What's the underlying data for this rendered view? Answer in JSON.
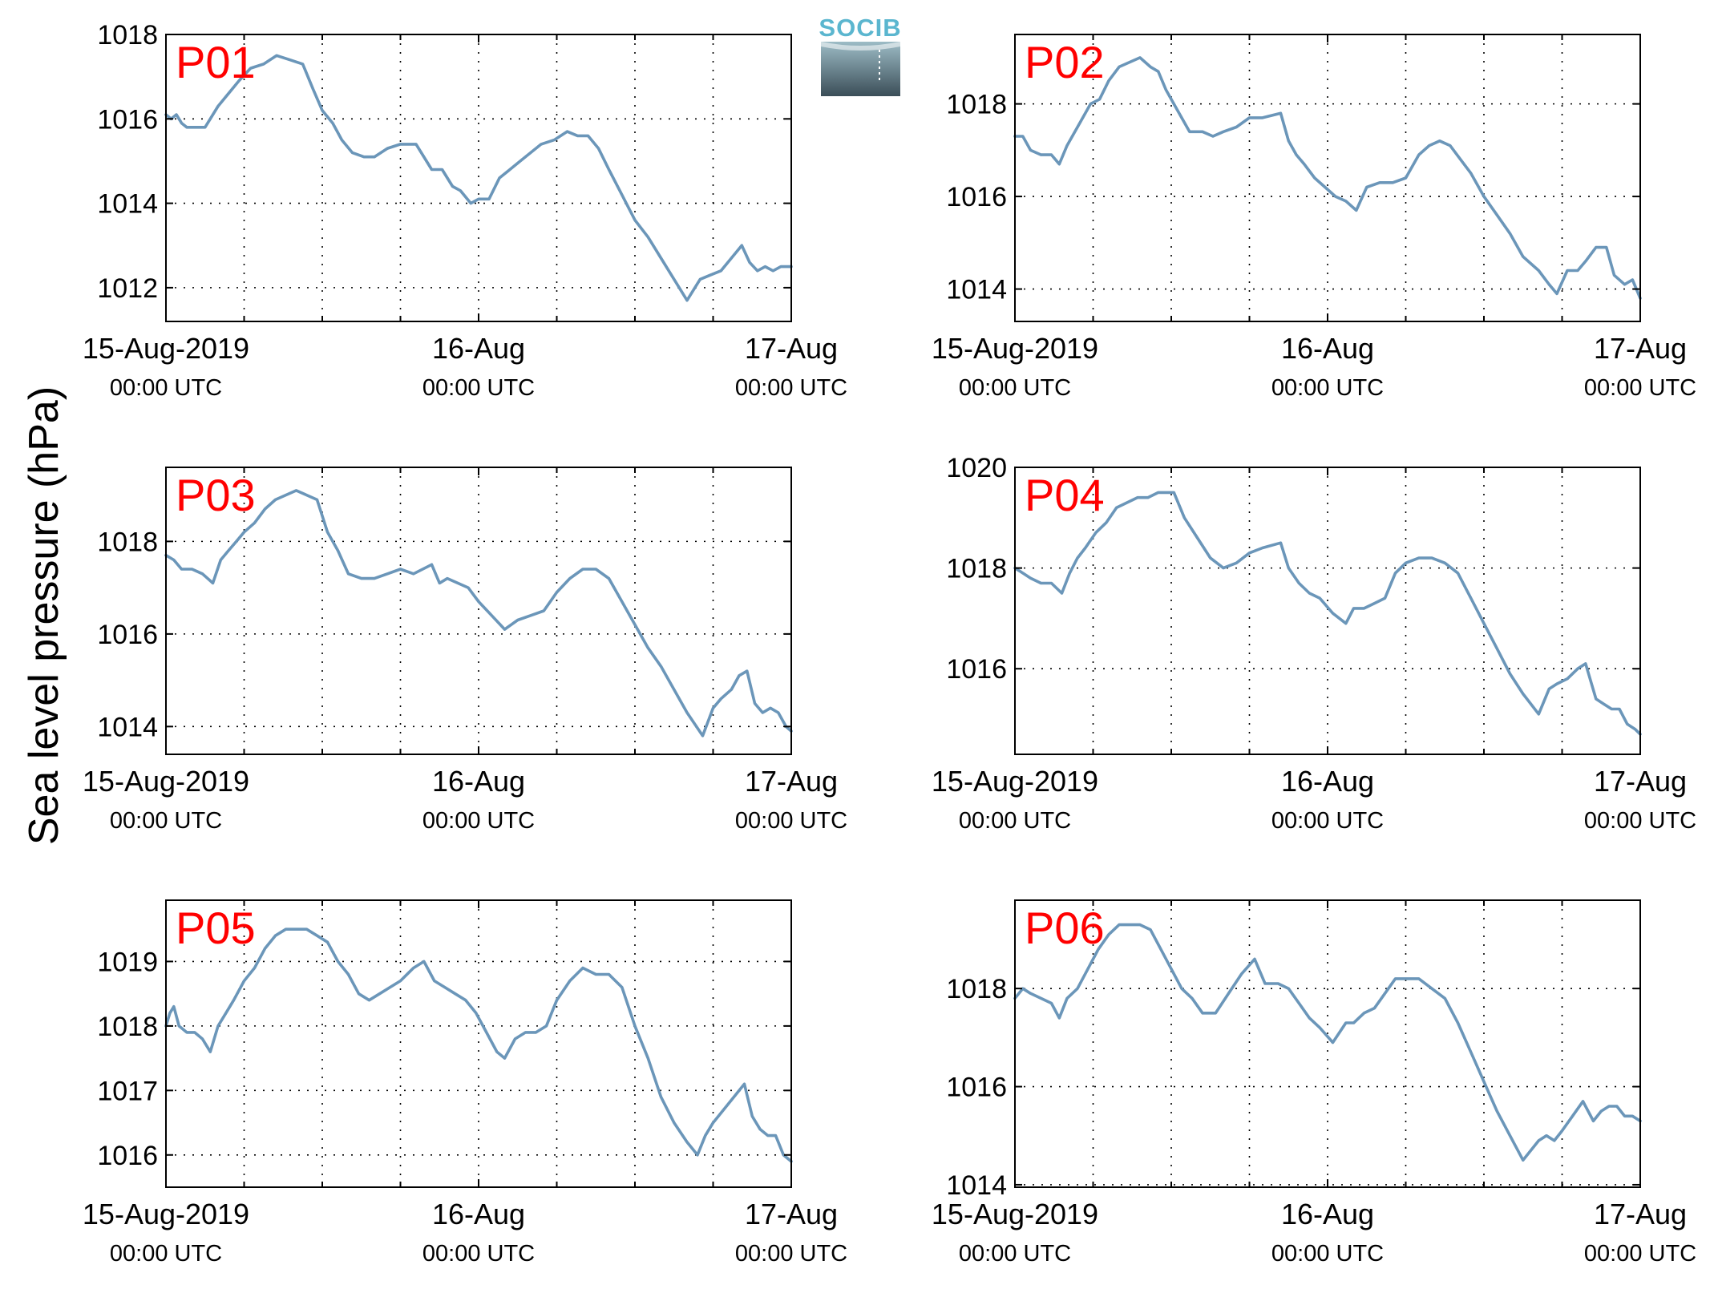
{
  "figure": {
    "ylabel": "Sea level pressure (hPa)",
    "logo_text": "SOCIB",
    "colors": {
      "line": "#6b96b9",
      "panel_label": "#ff0000",
      "grid": "#000000"
    }
  },
  "chart_data": [
    {
      "type": "line",
      "panel_label": "P01",
      "ylim": [
        1011.2,
        1018.0
      ],
      "yticks": [
        1012,
        1014,
        1016,
        1018
      ],
      "xlim": [
        0,
        48
      ],
      "grid": true,
      "xtick_labels": [
        {
          "x": 0,
          "date": "15-Aug-2019",
          "time": "00:00 UTC"
        },
        {
          "x": 24,
          "date": "16-Aug",
          "time": "00:00 UTC"
        },
        {
          "x": 48,
          "date": "17-Aug",
          "time": "00:00 UTC"
        }
      ],
      "series": [
        {
          "x": [
            0,
            0.4,
            0.8,
            1.2,
            1.6,
            2.2,
            3,
            4,
            4.8,
            5.6,
            6.5,
            7.5,
            8.5,
            9.5,
            10.5,
            11.3,
            12,
            12.8,
            13.5,
            14.3,
            15.2,
            16,
            17,
            18,
            19.2,
            20.4,
            21.2,
            22,
            22.6,
            23.4,
            24,
            24.8,
            25.6,
            26.4,
            27.2,
            28,
            28.8,
            29.8,
            30.8,
            31.6,
            32.4,
            33.2,
            34,
            35,
            36,
            37,
            38,
            39,
            40,
            41,
            41.8,
            42.6,
            43.4,
            44.2,
            44.8,
            45.4,
            46,
            46.6,
            47.2,
            48
          ],
          "y": [
            1016.1,
            1016.0,
            1016.1,
            1015.9,
            1015.8,
            1015.8,
            1015.8,
            1016.3,
            1016.6,
            1016.9,
            1017.2,
            1017.3,
            1017.5,
            1017.4,
            1017.3,
            1016.7,
            1016.2,
            1015.9,
            1015.5,
            1015.2,
            1015.1,
            1015.1,
            1015.3,
            1015.4,
            1015.4,
            1014.8,
            1014.8,
            1014.4,
            1014.3,
            1014.0,
            1014.1,
            1014.1,
            1014.6,
            1014.8,
            1015.0,
            1015.2,
            1015.4,
            1015.5,
            1015.7,
            1015.6,
            1015.6,
            1015.3,
            1014.8,
            1014.2,
            1013.6,
            1013.2,
            1012.7,
            1012.2,
            1011.7,
            1012.2,
            1012.3,
            1012.4,
            1012.7,
            1013.0,
            1012.6,
            1012.4,
            1012.5,
            1012.4,
            1012.5,
            1012.5
          ]
        }
      ]
    },
    {
      "type": "line",
      "panel_label": "P02",
      "ylim": [
        1013.3,
        1019.5
      ],
      "yticks": [
        1014,
        1016,
        1018
      ],
      "xlim": [
        0,
        48
      ],
      "grid": true,
      "xtick_labels": [
        {
          "x": 0,
          "date": "15-Aug-2019",
          "time": "00:00 UTC"
        },
        {
          "x": 24,
          "date": "16-Aug",
          "time": "00:00 UTC"
        },
        {
          "x": 48,
          "date": "17-Aug",
          "time": "00:00 UTC"
        }
      ],
      "series": [
        {
          "x": [
            0,
            0.6,
            1.2,
            2,
            2.8,
            3.4,
            4,
            5,
            5.8,
            6.5,
            7.2,
            8,
            8.8,
            9.6,
            10.4,
            11,
            11.6,
            12.4,
            13.4,
            14.4,
            15.2,
            16,
            17,
            18,
            19,
            20.4,
            21,
            21.6,
            22.2,
            23,
            23.8,
            24.6,
            25.4,
            26.2,
            27,
            28,
            29,
            30,
            31,
            31.8,
            32.6,
            33.4,
            34.2,
            35,
            36,
            37,
            38,
            39,
            40.2,
            41,
            41.6,
            42.4,
            43.2,
            43.8,
            44.6,
            45.4,
            46,
            46.8,
            47.4,
            48
          ],
          "y": [
            1017.3,
            1017.3,
            1017.0,
            1016.9,
            1016.9,
            1016.7,
            1017.1,
            1017.6,
            1018.0,
            1018.1,
            1018.5,
            1018.8,
            1018.9,
            1019.0,
            1018.8,
            1018.7,
            1018.3,
            1017.9,
            1017.4,
            1017.4,
            1017.3,
            1017.4,
            1017.5,
            1017.7,
            1017.7,
            1017.8,
            1017.2,
            1016.9,
            1016.7,
            1016.4,
            1016.2,
            1016.0,
            1015.9,
            1015.7,
            1016.2,
            1016.3,
            1016.3,
            1016.4,
            1016.9,
            1017.1,
            1017.2,
            1017.1,
            1016.8,
            1016.5,
            1016.0,
            1015.6,
            1015.2,
            1014.7,
            1014.4,
            1014.1,
            1013.9,
            1014.4,
            1014.4,
            1014.6,
            1014.9,
            1014.9,
            1014.3,
            1014.1,
            1014.2,
            1013.8
          ]
        }
      ]
    },
    {
      "type": "line",
      "panel_label": "P03",
      "ylim": [
        1013.4,
        1019.6
      ],
      "yticks": [
        1014,
        1016,
        1018
      ],
      "xlim": [
        0,
        48
      ],
      "grid": true,
      "xtick_labels": [
        {
          "x": 0,
          "date": "15-Aug-2019",
          "time": "00:00 UTC"
        },
        {
          "x": 24,
          "date": "16-Aug",
          "time": "00:00 UTC"
        },
        {
          "x": 48,
          "date": "17-Aug",
          "time": "00:00 UTC"
        }
      ],
      "series": [
        {
          "x": [
            0,
            0.6,
            1.2,
            2,
            2.8,
            3.6,
            4.2,
            4.8,
            5.4,
            6,
            6.8,
            7.6,
            8.4,
            9.2,
            10,
            10.8,
            11.6,
            12.4,
            13.2,
            14,
            15,
            16,
            17,
            18,
            19,
            20.4,
            21,
            21.6,
            22.4,
            23.2,
            24,
            25,
            26,
            27,
            28,
            29,
            30,
            31,
            32,
            33,
            34,
            35,
            36,
            37,
            38,
            39,
            40,
            41.2,
            42,
            42.6,
            43.4,
            44,
            44.6,
            45.2,
            45.8,
            46.4,
            47,
            47.6,
            48
          ],
          "y": [
            1017.7,
            1017.6,
            1017.4,
            1017.4,
            1017.3,
            1017.1,
            1017.6,
            1017.8,
            1018.0,
            1018.2,
            1018.4,
            1018.7,
            1018.9,
            1019.0,
            1019.1,
            1019.0,
            1018.9,
            1018.2,
            1017.8,
            1017.3,
            1017.2,
            1017.2,
            1017.3,
            1017.4,
            1017.3,
            1017.5,
            1017.1,
            1017.2,
            1017.1,
            1017.0,
            1016.7,
            1016.4,
            1016.1,
            1016.3,
            1016.4,
            1016.5,
            1016.9,
            1017.2,
            1017.4,
            1017.4,
            1017.2,
            1016.7,
            1016.2,
            1015.7,
            1015.3,
            1014.8,
            1014.3,
            1013.8,
            1014.4,
            1014.6,
            1014.8,
            1015.1,
            1015.2,
            1014.5,
            1014.3,
            1014.4,
            1014.3,
            1014.0,
            1013.9
          ]
        }
      ]
    },
    {
      "type": "line",
      "panel_label": "P04",
      "ylim": [
        1014.3,
        1020.0
      ],
      "yticks": [
        1016,
        1018,
        1020
      ],
      "xlim": [
        0,
        48
      ],
      "grid": true,
      "xtick_labels": [
        {
          "x": 0,
          "date": "15-Aug-2019",
          "time": "00:00 UTC"
        },
        {
          "x": 24,
          "date": "16-Aug",
          "time": "00:00 UTC"
        },
        {
          "x": 48,
          "date": "17-Aug",
          "time": "00:00 UTC"
        }
      ],
      "series": [
        {
          "x": [
            0,
            0.6,
            1.2,
            2,
            2.8,
            3.6,
            4.2,
            4.8,
            5.4,
            6.2,
            7,
            7.8,
            8.6,
            9.4,
            10.2,
            11,
            11.6,
            12.2,
            13,
            14,
            15,
            16,
            17,
            18,
            19,
            20.4,
            21,
            21.8,
            22.6,
            23.4,
            24.4,
            25.4,
            26,
            26.8,
            27.6,
            28.4,
            29.2,
            30,
            31,
            32,
            33,
            34,
            35,
            36,
            37,
            38,
            39,
            40.2,
            41,
            41.6,
            42.4,
            43.2,
            43.8,
            44.6,
            45.2,
            45.8,
            46.4,
            47,
            47.6,
            48
          ],
          "y": [
            1018.0,
            1017.9,
            1017.8,
            1017.7,
            1017.7,
            1017.5,
            1017.9,
            1018.2,
            1018.4,
            1018.7,
            1018.9,
            1019.2,
            1019.3,
            1019.4,
            1019.4,
            1019.5,
            1019.5,
            1019.5,
            1019.0,
            1018.6,
            1018.2,
            1018.0,
            1018.1,
            1018.3,
            1018.4,
            1018.5,
            1018.0,
            1017.7,
            1017.5,
            1017.4,
            1017.1,
            1016.9,
            1017.2,
            1017.2,
            1017.3,
            1017.4,
            1017.9,
            1018.1,
            1018.2,
            1018.2,
            1018.1,
            1017.9,
            1017.4,
            1016.9,
            1016.4,
            1015.9,
            1015.5,
            1015.1,
            1015.6,
            1015.7,
            1015.8,
            1016.0,
            1016.1,
            1015.4,
            1015.3,
            1015.2,
            1015.2,
            1014.9,
            1014.8,
            1014.7
          ]
        }
      ]
    },
    {
      "type": "line",
      "panel_label": "P05",
      "ylim": [
        1015.5,
        1019.95
      ],
      "yticks": [
        1016,
        1017,
        1018,
        1019
      ],
      "xlim": [
        0,
        48
      ],
      "grid": true,
      "xtick_labels": [
        {
          "x": 0,
          "date": "15-Aug-2019",
          "time": "00:00 UTC"
        },
        {
          "x": 24,
          "date": "16-Aug",
          "time": "00:00 UTC"
        },
        {
          "x": 48,
          "date": "17-Aug",
          "time": "00:00 UTC"
        }
      ],
      "series": [
        {
          "x": [
            0,
            0.3,
            0.6,
            1,
            1.6,
            2.2,
            2.8,
            3.4,
            4,
            4.6,
            5.2,
            6,
            6.8,
            7.6,
            8.4,
            9.2,
            10,
            10.8,
            11.6,
            12.4,
            13.2,
            14,
            14.8,
            15.6,
            16.4,
            17.2,
            18,
            19,
            19.8,
            20.6,
            21.4,
            22.2,
            23,
            23.8,
            24.6,
            25.4,
            26,
            26.8,
            27.6,
            28.4,
            29.2,
            30,
            31,
            32,
            33,
            34,
            35,
            36,
            37,
            38,
            39,
            40,
            40.8,
            41.4,
            42,
            42.8,
            43.6,
            44.4,
            45,
            45.6,
            46.2,
            46.8,
            47.4,
            48
          ],
          "y": [
            1018.0,
            1018.2,
            1018.3,
            1018.0,
            1017.9,
            1017.9,
            1017.8,
            1017.6,
            1018.0,
            1018.2,
            1018.4,
            1018.7,
            1018.9,
            1019.2,
            1019.4,
            1019.5,
            1019.5,
            1019.5,
            1019.4,
            1019.3,
            1019.0,
            1018.8,
            1018.5,
            1018.4,
            1018.5,
            1018.6,
            1018.7,
            1018.9,
            1019.0,
            1018.7,
            1018.6,
            1018.5,
            1018.4,
            1018.2,
            1017.9,
            1017.6,
            1017.5,
            1017.8,
            1017.9,
            1017.9,
            1018.0,
            1018.4,
            1018.7,
            1018.9,
            1018.8,
            1018.8,
            1018.6,
            1018.0,
            1017.5,
            1016.9,
            1016.5,
            1016.2,
            1016.0,
            1016.3,
            1016.5,
            1016.7,
            1016.9,
            1017.1,
            1016.6,
            1016.4,
            1016.3,
            1016.3,
            1016.0,
            1015.9
          ]
        }
      ]
    },
    {
      "type": "line",
      "panel_label": "P06",
      "ylim": [
        1013.95,
        1019.8
      ],
      "yticks": [
        1014,
        1016,
        1018
      ],
      "xlim": [
        0,
        48
      ],
      "grid": true,
      "xtick_labels": [
        {
          "x": 0,
          "date": "15-Aug-2019",
          "time": "00:00 UTC"
        },
        {
          "x": 24,
          "date": "16-Aug",
          "time": "00:00 UTC"
        },
        {
          "x": 48,
          "date": "17-Aug",
          "time": "00:00 UTC"
        }
      ],
      "series": [
        {
          "x": [
            0,
            0.6,
            1.2,
            2,
            2.8,
            3.4,
            4,
            4.8,
            5.6,
            6.4,
            7.2,
            8,
            8.8,
            9.6,
            10.4,
            11.2,
            12,
            12.8,
            13.6,
            14.4,
            15.4,
            16.4,
            17.4,
            18.4,
            19.2,
            20.2,
            21,
            21.8,
            22.6,
            23.4,
            24.4,
            25.4,
            26,
            26.8,
            27.6,
            28.4,
            29.2,
            30,
            31,
            32,
            33,
            34,
            35,
            36,
            37,
            38,
            39,
            40.2,
            40.8,
            41.4,
            42,
            42.8,
            43.6,
            44.4,
            45,
            45.6,
            46.2,
            46.8,
            47.4,
            48
          ],
          "y": [
            1017.8,
            1018.0,
            1017.9,
            1017.8,
            1017.7,
            1017.4,
            1017.8,
            1018.0,
            1018.4,
            1018.8,
            1019.1,
            1019.3,
            1019.3,
            1019.3,
            1019.2,
            1018.8,
            1018.4,
            1018.0,
            1017.8,
            1017.5,
            1017.5,
            1017.9,
            1018.3,
            1018.6,
            1018.1,
            1018.1,
            1018.0,
            1017.7,
            1017.4,
            1017.2,
            1016.9,
            1017.3,
            1017.3,
            1017.5,
            1017.6,
            1017.9,
            1018.2,
            1018.2,
            1018.2,
            1018.0,
            1017.8,
            1017.3,
            1016.7,
            1016.1,
            1015.5,
            1015.0,
            1014.5,
            1014.9,
            1015.0,
            1014.9,
            1015.1,
            1015.4,
            1015.7,
            1015.3,
            1015.5,
            1015.6,
            1015.6,
            1015.4,
            1015.4,
            1015.3
          ]
        }
      ]
    }
  ]
}
